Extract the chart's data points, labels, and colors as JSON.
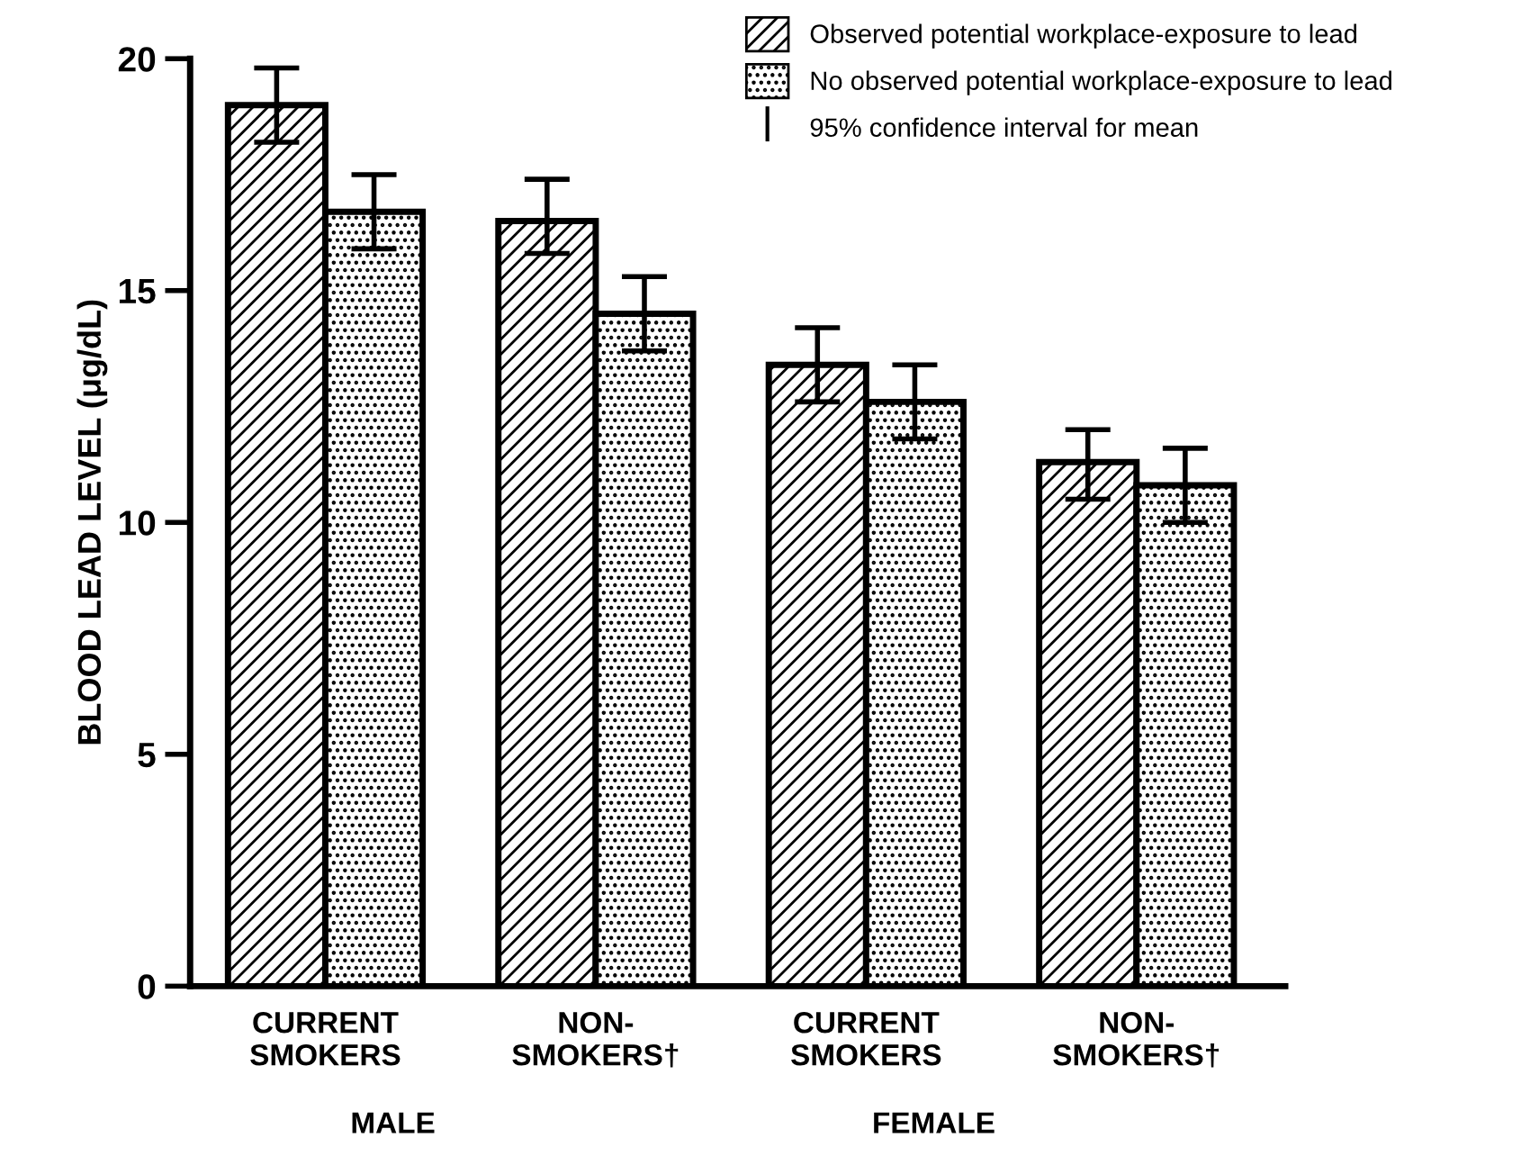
{
  "chart_data": {
    "type": "bar",
    "ylabel": "BLOOD LEAD LEVEL (μg/dL)",
    "categories": [
      "CURRENT\nSMOKERS",
      "NON-\nSMOKERS†",
      "CURRENT\nSMOKERS",
      "NON-\nSMOKERS†"
    ],
    "series": [
      {
        "name": "Observed potential workplace-exposure to lead",
        "color": "#000000",
        "values": [
          19.0,
          16.5,
          13.4,
          11.3
        ],
        "errors": [
          [
            18.2,
            19.8
          ],
          [
            15.8,
            17.4
          ],
          [
            12.6,
            14.2
          ],
          [
            10.5,
            12.0
          ]
        ]
      },
      {
        "name": "No observed potential workplace-exposure to lead",
        "color": "#000000",
        "values": [
          16.7,
          14.5,
          12.6,
          10.8
        ],
        "errors": [
          [
            15.9,
            17.5
          ],
          [
            13.7,
            15.3
          ],
          [
            11.8,
            13.4
          ],
          [
            10.0,
            11.6
          ]
        ]
      }
    ],
    "annotations": [
      "MALE",
      "FEMALE",
      "95% confidence interval for mean"
    ],
    "ylim": [
      0,
      20
    ],
    "yticks": [
      0,
      5,
      10,
      15,
      20
    ],
    "grid": false,
    "legend": "top right"
  }
}
